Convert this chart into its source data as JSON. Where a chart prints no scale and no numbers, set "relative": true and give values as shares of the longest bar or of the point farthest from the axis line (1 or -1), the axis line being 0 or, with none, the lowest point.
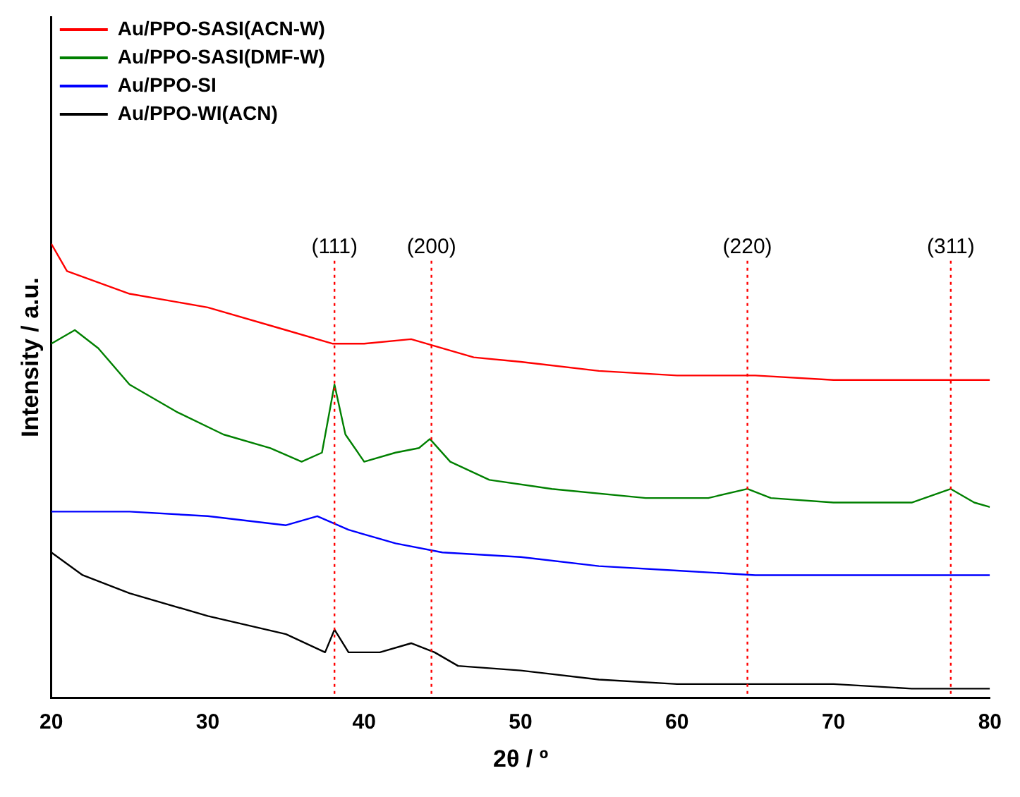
{
  "chart_data": {
    "type": "line",
    "xlabel": "2θ / º",
    "ylabel": "Intensity / a.u.",
    "relative": true,
    "xlim": [
      20,
      80
    ],
    "xticks": [
      20,
      30,
      40,
      50,
      60,
      70,
      80
    ],
    "legend": "top left",
    "grid": false,
    "marker": "none",
    "line_style": "solid",
    "series": [
      {
        "name": "Au/PPO-SASI(ACN-W)",
        "color": "#ff0000",
        "x": [
          20,
          21,
          25,
          30,
          35,
          38,
          40,
          43,
          47,
          50,
          55,
          60,
          65,
          70,
          75,
          80
        ],
        "values": [
          1.0,
          0.94,
          0.89,
          0.86,
          0.81,
          0.78,
          0.78,
          0.79,
          0.75,
          0.74,
          0.72,
          0.71,
          0.71,
          0.7,
          0.7,
          0.7
        ]
      },
      {
        "name": "Au/PPO-SASI(DMF-W)",
        "color": "#008000",
        "x": [
          20,
          21.5,
          23,
          25,
          28,
          31,
          34,
          36,
          37.3,
          38.1,
          38.8,
          40,
          42,
          43.5,
          44.2,
          45.5,
          48,
          52,
          58,
          62,
          64.5,
          66,
          70,
          75,
          77.5,
          79,
          80
        ],
        "values": [
          0.78,
          0.81,
          0.77,
          0.69,
          0.63,
          0.58,
          0.55,
          0.52,
          0.54,
          0.69,
          0.58,
          0.52,
          0.54,
          0.55,
          0.57,
          0.52,
          0.48,
          0.46,
          0.44,
          0.44,
          0.46,
          0.44,
          0.43,
          0.43,
          0.46,
          0.43,
          0.42
        ]
      },
      {
        "name": "Au/PPO-SI",
        "color": "#0000ff",
        "x": [
          20,
          25,
          30,
          35,
          37,
          39,
          42,
          45,
          50,
          55,
          60,
          65,
          70,
          75,
          80
        ],
        "values": [
          0.41,
          0.41,
          0.4,
          0.38,
          0.4,
          0.37,
          0.34,
          0.32,
          0.31,
          0.29,
          0.28,
          0.27,
          0.27,
          0.27,
          0.27
        ]
      },
      {
        "name": "Au/PPO-WI(ACN)",
        "color": "#000000",
        "x": [
          20,
          22,
          25,
          30,
          35,
          37.5,
          38.1,
          39,
          41,
          43,
          44.5,
          46,
          50,
          55,
          60,
          65,
          70,
          75,
          80
        ],
        "values": [
          0.32,
          0.27,
          0.23,
          0.18,
          0.14,
          0.1,
          0.15,
          0.1,
          0.1,
          0.12,
          0.1,
          0.07,
          0.06,
          0.04,
          0.03,
          0.03,
          0.03,
          0.02,
          0.02
        ]
      }
    ],
    "ref_lines": [
      {
        "axis": "x",
        "value": 38.1,
        "color": "#ff0000",
        "line_style": "dotted"
      },
      {
        "axis": "x",
        "value": 44.3,
        "color": "#ff0000",
        "line_style": "dotted"
      },
      {
        "axis": "x",
        "value": 64.5,
        "color": "#ff0000",
        "line_style": "dotted"
      },
      {
        "axis": "x",
        "value": 77.5,
        "color": "#ff0000",
        "line_style": "dotted"
      }
    ],
    "annotations": [
      "(111)",
      "(200)",
      "(220)",
      "(311)"
    ]
  }
}
